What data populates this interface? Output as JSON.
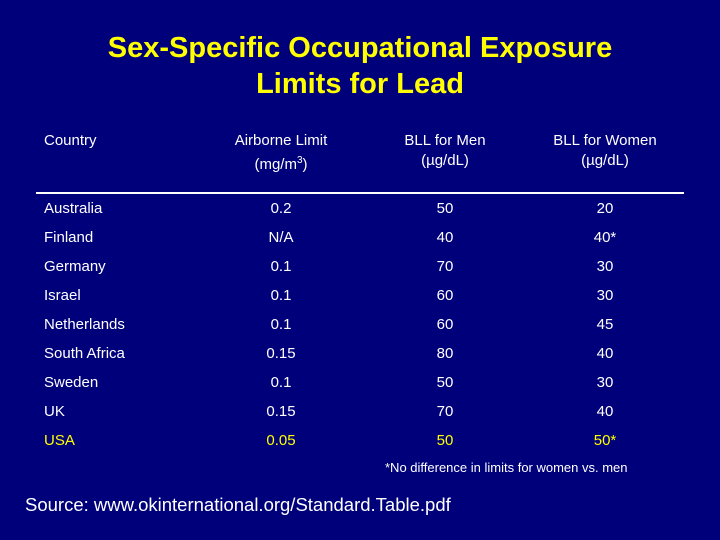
{
  "title": {
    "line1": "Sex-Specific Occupational Exposure",
    "line2": "Limits for Lead"
  },
  "headers": {
    "country": "Country",
    "airborne_line1": "Airborne Limit",
    "airborne_unit": "(mg/m",
    "airborne_sup": "3",
    "airborne_close": ")",
    "men_line1": "BLL for Men",
    "men_unit": "(µg/dL)",
    "women_line1": "BLL for Women",
    "women_unit": "(µg/dL)"
  },
  "rows": [
    {
      "country": "Australia",
      "airborne": "0.2",
      "men": "50",
      "women": "20"
    },
    {
      "country": "Finland",
      "airborne": "N/A",
      "men": "40",
      "women": "40*"
    },
    {
      "country": "Germany",
      "airborne": "0.1",
      "men": "70",
      "women": "30"
    },
    {
      "country": "Israel",
      "airborne": "0.1",
      "men": "60",
      "women": "30"
    },
    {
      "country": "Netherlands",
      "airborne": "0.1",
      "men": "60",
      "women": "45"
    },
    {
      "country": "South Africa",
      "airborne": "0.15",
      "men": "80",
      "women": "40"
    },
    {
      "country": "Sweden",
      "airborne": "0.1",
      "men": "50",
      "women": "30"
    },
    {
      "country": "UK",
      "airborne": "0.15",
      "men": "70",
      "women": "40"
    },
    {
      "country": "USA",
      "airborne": "0.05",
      "men": "50",
      "women": "50*"
    }
  ],
  "footnote": "*No difference in limits for women vs. men",
  "source": "Source: www.okinternational.org/Standard.Table.pdf",
  "colors": {
    "background": "#00007a",
    "title": "#ffff00",
    "text": "#ffffff",
    "highlight_row": "#ffff00"
  }
}
